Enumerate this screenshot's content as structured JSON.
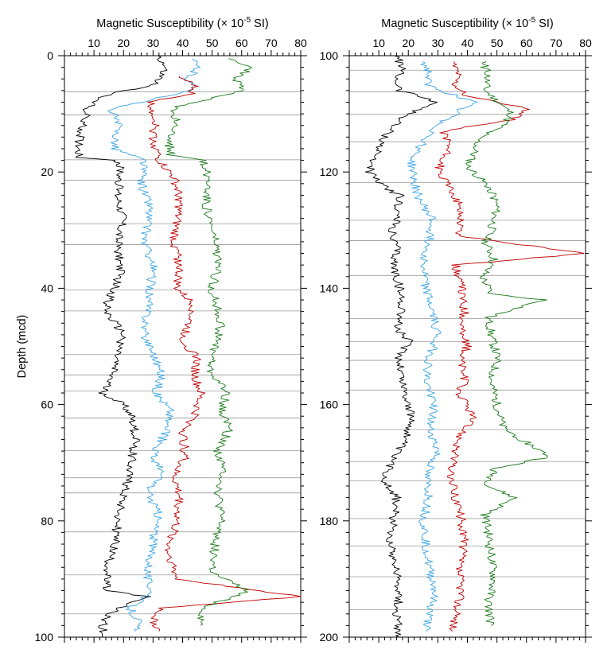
{
  "chart_data": [
    {
      "type": "line",
      "title": "Magnetic Susceptibility (× 10-5 SI)",
      "title_main": "Magnetic Susceptibility (× 10",
      "title_exp": "-5",
      "title_tail": " SI)",
      "xlim": [
        0,
        80
      ],
      "x_ticks": [
        "10",
        "20",
        "30",
        "40",
        "50",
        "60",
        "70",
        "80"
      ],
      "ylim": [
        0,
        100
      ],
      "y_ticks": [
        "0",
        "20",
        "40",
        "60",
        "80",
        "100"
      ],
      "ylabel": "Depth (mcd)",
      "section_breaks": [
        6.2,
        10.2,
        17.9,
        21.4,
        28.9,
        32.5,
        40.3,
        43.9,
        51.4,
        54.9,
        57.7,
        62.3,
        67.9,
        72.6,
        75.2,
        81.9,
        89.3,
        96.0
      ],
      "series": [
        {
          "color": "#000000",
          "points": [
            [
              32,
              0
            ],
            [
              34,
              2
            ],
            [
              32,
              4
            ],
            [
              30,
              5
            ],
            [
              12,
              7
            ],
            [
              8,
              9
            ],
            [
              6,
              12
            ],
            [
              5,
              15
            ],
            [
              5,
              17.5
            ],
            [
              18,
              18
            ],
            [
              19,
              20
            ],
            [
              18,
              24
            ],
            [
              20,
              28
            ],
            [
              18,
              32
            ],
            [
              19,
              37
            ],
            [
              17,
              40
            ],
            [
              15,
              42
            ],
            [
              14,
              44
            ],
            [
              17,
              46
            ],
            [
              20,
              48
            ],
            [
              18,
              51
            ],
            [
              16,
              55
            ],
            [
              13,
              58
            ],
            [
              20,
              60
            ],
            [
              23,
              62
            ],
            [
              24,
              66
            ],
            [
              22,
              72
            ],
            [
              20,
              76
            ],
            [
              18,
              80
            ],
            [
              17,
              84
            ],
            [
              15,
              87
            ],
            [
              14,
              90
            ],
            [
              14,
              92
            ],
            [
              28,
              93
            ],
            [
              22,
              94
            ],
            [
              15,
              96
            ],
            [
              13,
              98
            ],
            [
              13,
              100
            ]
          ]
        },
        {
          "color": "#39a4e6",
          "points": [
            [
              43,
              0.5
            ],
            [
              45,
              2
            ],
            [
              42,
              4
            ],
            [
              44,
              6
            ],
            [
              16,
              9
            ],
            [
              18,
              12
            ],
            [
              17,
              16
            ],
            [
              27,
              18
            ],
            [
              26,
              22
            ],
            [
              29,
              26
            ],
            [
              27,
              32
            ],
            [
              30,
              36
            ],
            [
              29,
              40
            ],
            [
              28,
              44
            ],
            [
              27,
              48
            ],
            [
              30,
              51
            ],
            [
              33,
              55
            ],
            [
              31,
              58
            ],
            [
              36,
              61
            ],
            [
              34,
              65
            ],
            [
              30,
              69
            ],
            [
              33,
              72
            ],
            [
              28,
              75
            ],
            [
              32,
              79
            ],
            [
              30,
              83
            ],
            [
              29,
              87
            ],
            [
              28,
              90
            ],
            [
              30,
              92
            ],
            [
              22,
              95
            ],
            [
              25,
              97
            ],
            [
              24,
              99
            ]
          ]
        },
        {
          "color": "#c00000",
          "points": [
            [
              38,
              3.5
            ],
            [
              44,
              5
            ],
            [
              43,
              6.5
            ],
            [
              29,
              8
            ],
            [
              31,
              11
            ],
            [
              30,
              14
            ],
            [
              32,
              18
            ],
            [
              37,
              21
            ],
            [
              39,
              25
            ],
            [
              38,
              28
            ],
            [
              37,
              32
            ],
            [
              39,
              36
            ],
            [
              38,
              40
            ],
            [
              44,
              43
            ],
            [
              42,
              46
            ],
            [
              40,
              49
            ],
            [
              45,
              52
            ],
            [
              44,
              55
            ],
            [
              46,
              58
            ],
            [
              44,
              62
            ],
            [
              40,
              65
            ],
            [
              41,
              69
            ],
            [
              37,
              72
            ],
            [
              39,
              76
            ],
            [
              38,
              80
            ],
            [
              35,
              85
            ],
            [
              37,
              88
            ],
            [
              38,
              90
            ],
            [
              80,
              93
            ],
            [
              33,
              95
            ],
            [
              30,
              97
            ],
            [
              32,
              99
            ]
          ]
        },
        {
          "color": "#1a7a1a",
          "points": [
            [
              57,
              0.5
            ],
            [
              63,
              2
            ],
            [
              58,
              4
            ],
            [
              60,
              6
            ],
            [
              37,
              9
            ],
            [
              38,
              12
            ],
            [
              35,
              14
            ],
            [
              36,
              17
            ],
            [
              47,
              18
            ],
            [
              49,
              22
            ],
            [
              48,
              26
            ],
            [
              51,
              32
            ],
            [
              52,
              36
            ],
            [
              50,
              40
            ],
            [
              53,
              46
            ],
            [
              51,
              50
            ],
            [
              49,
              54
            ],
            [
              55,
              58
            ],
            [
              53,
              61
            ],
            [
              56,
              64
            ],
            [
              52,
              68
            ],
            [
              54,
              72
            ],
            [
              52,
              75
            ],
            [
              53,
              80
            ],
            [
              51,
              84
            ],
            [
              50,
              89
            ],
            [
              62,
              92
            ],
            [
              47,
              95
            ],
            [
              46,
              98
            ]
          ]
        }
      ]
    },
    {
      "type": "line",
      "title": "Magnetic Susceptibility (× 10-5 SI)",
      "title_main": "Magnetic Susceptibility (× 10",
      "title_exp": "-5",
      "title_tail": " SI)",
      "xlim": [
        0,
        80
      ],
      "x_ticks": [
        "10",
        "20",
        "30",
        "40",
        "50",
        "60",
        "70",
        "80"
      ],
      "ylim": [
        100,
        200
      ],
      "y_ticks": [
        "100",
        "120",
        "140",
        "160",
        "180",
        "200"
      ],
      "ylabel": "",
      "section_breaks": [
        102.5,
        106.2,
        110.1,
        114.8,
        121.8,
        128.3,
        131.8,
        137.8,
        145.2,
        149.2,
        152.4,
        157.5,
        164.3,
        169.8,
        173.1,
        179.6,
        184.3,
        189.6,
        195.3
      ],
      "series": [
        {
          "color": "#000000",
          "points": [
            [
              16,
              100
            ],
            [
              18,
              102
            ],
            [
              16,
              104
            ],
            [
              17,
              106
            ],
            [
              24,
              107
            ],
            [
              30,
              108
            ],
            [
              20,
              110
            ],
            [
              15,
              112
            ],
            [
              12,
              114
            ],
            [
              10,
              116
            ],
            [
              8,
              118
            ],
            [
              7,
              120
            ],
            [
              10,
              122
            ],
            [
              17,
              124
            ],
            [
              16,
              128
            ],
            [
              14,
              131
            ],
            [
              16,
              133
            ],
            [
              15,
              136
            ],
            [
              17,
              140
            ],
            [
              18,
              144
            ],
            [
              16,
              147
            ],
            [
              20,
              149
            ],
            [
              17,
              152
            ],
            [
              18,
              156
            ],
            [
              20,
              160
            ],
            [
              21,
              163
            ],
            [
              19,
              166
            ],
            [
              16,
              168
            ],
            [
              14,
              170
            ],
            [
              12,
              173
            ],
            [
              16,
              176
            ],
            [
              15,
              180
            ],
            [
              14,
              184
            ],
            [
              16,
              188
            ],
            [
              17,
              192
            ],
            [
              16,
              196
            ],
            [
              17,
              200
            ]
          ]
        },
        {
          "color": "#39a4e6",
          "points": [
            [
              25,
              101
            ],
            [
              27,
              103
            ],
            [
              26,
              105
            ],
            [
              42,
              108
            ],
            [
              38,
              109
            ],
            [
              36,
              110
            ],
            [
              30,
              112
            ],
            [
              25,
              115
            ],
            [
              21,
              118
            ],
            [
              22,
              122
            ],
            [
              24,
              125
            ],
            [
              28,
              128
            ],
            [
              27,
              132
            ],
            [
              25,
              136
            ],
            [
              26,
              140
            ],
            [
              28,
              144
            ],
            [
              30,
              148
            ],
            [
              27,
              152
            ],
            [
              26,
              156
            ],
            [
              29,
              160
            ],
            [
              27,
              164
            ],
            [
              30,
              168
            ],
            [
              26,
              172
            ],
            [
              27,
              176
            ],
            [
              25,
              180
            ],
            [
              26,
              184
            ],
            [
              27,
              188
            ],
            [
              29,
              192
            ],
            [
              27,
              196
            ],
            [
              26,
              199
            ]
          ]
        },
        {
          "color": "#c00000",
          "points": [
            [
              35,
              101
            ],
            [
              37,
              103
            ],
            [
              36,
              105
            ],
            [
              40,
              107
            ],
            [
              60,
              109
            ],
            [
              55,
              111
            ],
            [
              32,
              113
            ],
            [
              34,
              115
            ],
            [
              30,
              120
            ],
            [
              33,
              122
            ],
            [
              36,
              124
            ],
            [
              38,
              128
            ],
            [
              37,
              131
            ],
            [
              80,
              134
            ],
            [
              36,
              136
            ],
            [
              38,
              140
            ],
            [
              39,
              144
            ],
            [
              38,
              148
            ],
            [
              40,
              150
            ],
            [
              38,
              152
            ],
            [
              39,
              156
            ],
            [
              37,
              158
            ],
            [
              42,
              162
            ],
            [
              38,
              165
            ],
            [
              36,
              168
            ],
            [
              34,
              172
            ],
            [
              36,
              176
            ],
            [
              38,
              180
            ],
            [
              39,
              184
            ],
            [
              37,
              188
            ],
            [
              38,
              192
            ],
            [
              36,
              196
            ],
            [
              35,
              199
            ]
          ]
        },
        {
          "color": "#1a7a1a",
          "points": [
            [
              45,
              101
            ],
            [
              47,
              103
            ],
            [
              46,
              106
            ],
            [
              55,
              110
            ],
            [
              52,
              112
            ],
            [
              44,
              114
            ],
            [
              42,
              117
            ],
            [
              40,
              119
            ],
            [
              48,
              123
            ],
            [
              50,
              126
            ],
            [
              48,
              130
            ],
            [
              46,
              132
            ],
            [
              49,
              135
            ],
            [
              45,
              138
            ],
            [
              48,
              141
            ],
            [
              66,
              142
            ],
            [
              47,
              145
            ],
            [
              48,
              148
            ],
            [
              50,
              152
            ],
            [
              48,
              156
            ],
            [
              50,
              160
            ],
            [
              52,
              164
            ],
            [
              68,
              169
            ],
            [
              49,
              171
            ],
            [
              47,
              174
            ],
            [
              56,
              176
            ],
            [
              46,
              179
            ],
            [
              47,
              182
            ],
            [
              48,
              186
            ],
            [
              49,
              190
            ],
            [
              47,
              194
            ],
            [
              48,
              198
            ]
          ]
        }
      ]
    }
  ]
}
